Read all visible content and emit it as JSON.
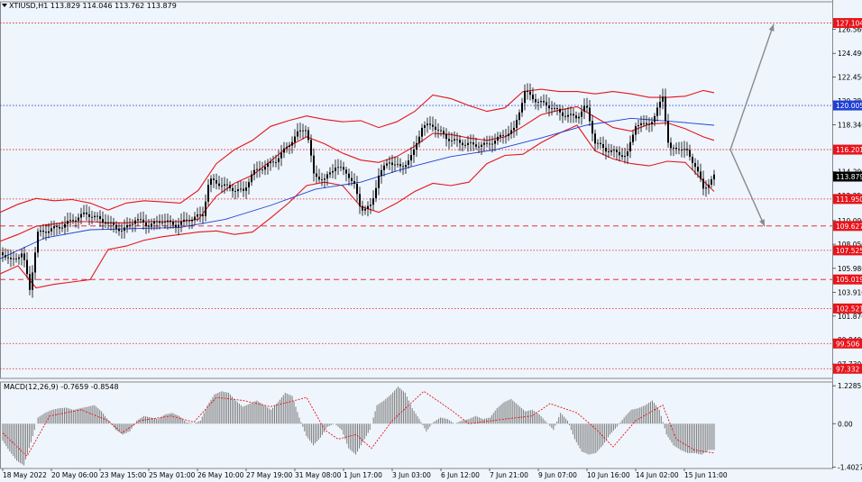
{
  "header": {
    "symbol_info": "XTIUSD,H1  113.829 114.046 113.762 113.879",
    "macd_label": "MACD(12,26,9) -0.7659 -0.8548"
  },
  "colors": {
    "background": "#eef5fc",
    "bollinger": "#e8141b",
    "moving_average": "#1f3fd6",
    "candles": "#000000",
    "macd_hist": "#7a7a7a",
    "macd_signal": "#e8141b",
    "arrows": "#8a8a8a",
    "red_badge": "#e8141b",
    "blue_badge": "#1f3fd6",
    "price_badge": "#000000"
  },
  "chart_data": {
    "type": "candlestick",
    "symbol": "XTIUSD",
    "timeframe": "H1",
    "last_price": 113.879,
    "ylim": [
      96.5,
      128.0
    ],
    "price_ticks": [
      "126.560",
      "124.490",
      "122.450",
      "120.380",
      "118.340",
      "114.290",
      "112.250",
      "110.090",
      "108.050",
      "105.980",
      "103.910",
      "101.870",
      "99.840",
      "97.730"
    ],
    "x_labels": [
      "18 May 2022",
      "20 May 06:00",
      "23 May 15:00",
      "25 May 01:00",
      "26 May 10:00",
      "27 May 19:00",
      "31 May 08:00",
      "1 Jun 17:00",
      "3 Jun 03:00",
      "6 Jun 12:00",
      "7 Jun 21:00",
      "9 Jun 07:00",
      "10 Jun 16:00",
      "14 Jun 02:00",
      "15 Jun 11:00"
    ],
    "horizontal_levels": [
      {
        "value": 127.104,
        "label": "127.104",
        "style": "dotted",
        "color": "#e8141b"
      },
      {
        "value": 120.005,
        "label": "120.005",
        "style": "dotted",
        "color": "#1f3fd6"
      },
      {
        "value": 116.201,
        "label": "116.201",
        "style": "dotted",
        "color": "#e8141b"
      },
      {
        "value": 111.95,
        "label": "111.950",
        "style": "dotted",
        "color": "#e8141b"
      },
      {
        "value": 109.627,
        "label": "109.627",
        "style": "dashed",
        "color": "#e8141b"
      },
      {
        "value": 107.525,
        "label": "107.525",
        "style": "dotted",
        "color": "#e8141b"
      },
      {
        "value": 105.019,
        "label": "105.019",
        "style": "dashed",
        "color": "#e8141b"
      },
      {
        "value": 102.521,
        "label": "102.521",
        "style": "dotted",
        "color": "#e8141b"
      },
      {
        "value": 99.506,
        "label": "99.506",
        "style": "dotted",
        "color": "#e8141b"
      },
      {
        "value": 97.332,
        "label": "97.332",
        "style": "dotted",
        "color": "#e8141b"
      }
    ],
    "price_path": [
      [
        0,
        107.5
      ],
      [
        12,
        106.6
      ],
      [
        25,
        107.3
      ],
      [
        33,
        104.2
      ],
      [
        42,
        109.0
      ],
      [
        55,
        109.3
      ],
      [
        68,
        109.6
      ],
      [
        82,
        110.2
      ],
      [
        95,
        110.7
      ],
      [
        108,
        110.3
      ],
      [
        122,
        109.8
      ],
      [
        136,
        109.2
      ],
      [
        150,
        110.2
      ],
      [
        165,
        109.7
      ],
      [
        180,
        110.1
      ],
      [
        195,
        109.7
      ],
      [
        210,
        110.2
      ],
      [
        225,
        110.6
      ],
      [
        232,
        113.6
      ],
      [
        245,
        113.2
      ],
      [
        258,
        112.8
      ],
      [
        270,
        112.6
      ],
      [
        280,
        114.2
      ],
      [
        292,
        114.7
      ],
      [
        305,
        115.2
      ],
      [
        318,
        116.4
      ],
      [
        330,
        117.6
      ],
      [
        340,
        118.1
      ],
      [
        348,
        114.0
      ],
      [
        360,
        113.6
      ],
      [
        372,
        114.8
      ],
      [
        385,
        114.2
      ],
      [
        393,
        113.1
      ],
      [
        400,
        111.1
      ],
      [
        412,
        111.3
      ],
      [
        420,
        114.1
      ],
      [
        432,
        115.2
      ],
      [
        445,
        114.6
      ],
      [
        458,
        115.8
      ],
      [
        468,
        118.2
      ],
      [
        480,
        118.3
      ],
      [
        495,
        117.2
      ],
      [
        510,
        116.8
      ],
      [
        525,
        116.6
      ],
      [
        540,
        116.6
      ],
      [
        555,
        117.3
      ],
      [
        570,
        117.9
      ],
      [
        582,
        121.2
      ],
      [
        595,
        120.4
      ],
      [
        610,
        119.9
      ],
      [
        625,
        119.2
      ],
      [
        640,
        119.0
      ],
      [
        650,
        120.0
      ],
      [
        660,
        116.8
      ],
      [
        672,
        116.2
      ],
      [
        685,
        115.9
      ],
      [
        695,
        115.6
      ],
      [
        705,
        118.4
      ],
      [
        715,
        118.3
      ],
      [
        725,
        118.8
      ],
      [
        735,
        120.9
      ],
      [
        742,
        116.1
      ],
      [
        752,
        116.4
      ],
      [
        762,
        116.0
      ],
      [
        772,
        114.7
      ],
      [
        780,
        112.8
      ],
      [
        792,
        113.879
      ]
    ],
    "bollinger_upper": [
      [
        0,
        110.8
      ],
      [
        20,
        111.5
      ],
      [
        40,
        112.0
      ],
      [
        60,
        111.8
      ],
      [
        80,
        111.9
      ],
      [
        100,
        111.6
      ],
      [
        120,
        111.0
      ],
      [
        140,
        111.6
      ],
      [
        160,
        111.8
      ],
      [
        180,
        111.7
      ],
      [
        200,
        111.6
      ],
      [
        220,
        112.7
      ],
      [
        240,
        115.0
      ],
      [
        260,
        116.2
      ],
      [
        280,
        117.0
      ],
      [
        300,
        118.2
      ],
      [
        320,
        118.7
      ],
      [
        340,
        119.1
      ],
      [
        360,
        118.8
      ],
      [
        380,
        118.6
      ],
      [
        400,
        118.7
      ],
      [
        420,
        118.1
      ],
      [
        440,
        118.6
      ],
      [
        460,
        119.5
      ],
      [
        480,
        120.9
      ],
      [
        500,
        120.6
      ],
      [
        520,
        120.0
      ],
      [
        540,
        119.5
      ],
      [
        560,
        119.8
      ],
      [
        580,
        121.2
      ],
      [
        600,
        121.4
      ],
      [
        620,
        121.2
      ],
      [
        640,
        121.2
      ],
      [
        660,
        121.0
      ],
      [
        680,
        121.2
      ],
      [
        700,
        121.0
      ],
      [
        720,
        120.7
      ],
      [
        740,
        120.7
      ],
      [
        760,
        120.8
      ],
      [
        780,
        121.3
      ],
      [
        792,
        121.1
      ]
    ],
    "bollinger_middle": [
      [
        0,
        108.3
      ],
      [
        20,
        108.9
      ],
      [
        40,
        109.6
      ],
      [
        60,
        109.8
      ],
      [
        80,
        110.0
      ],
      [
        100,
        110.0
      ],
      [
        120,
        109.9
      ],
      [
        140,
        109.9
      ],
      [
        160,
        110.0
      ],
      [
        180,
        110.0
      ],
      [
        200,
        110.0
      ],
      [
        220,
        110.2
      ],
      [
        240,
        112.2
      ],
      [
        260,
        113.3
      ],
      [
        280,
        114.0
      ],
      [
        300,
        115.2
      ],
      [
        320,
        116.5
      ],
      [
        340,
        117.3
      ],
      [
        360,
        116.7
      ],
      [
        380,
        115.9
      ],
      [
        400,
        115.3
      ],
      [
        420,
        115.1
      ],
      [
        440,
        115.6
      ],
      [
        460,
        116.5
      ],
      [
        480,
        117.6
      ],
      [
        500,
        117.5
      ],
      [
        520,
        117.2
      ],
      [
        540,
        117.0
      ],
      [
        560,
        117.3
      ],
      [
        580,
        118.2
      ],
      [
        600,
        119.2
      ],
      [
        620,
        119.6
      ],
      [
        640,
        119.9
      ],
      [
        660,
        119.0
      ],
      [
        680,
        118.1
      ],
      [
        700,
        117.8
      ],
      [
        720,
        118.4
      ],
      [
        740,
        118.5
      ],
      [
        760,
        118.0
      ],
      [
        780,
        117.3
      ],
      [
        792,
        117.0
      ]
    ],
    "bollinger_lower": [
      [
        0,
        105.5
      ],
      [
        20,
        106.2
      ],
      [
        40,
        104.3
      ],
      [
        60,
        104.6
      ],
      [
        80,
        104.8
      ],
      [
        100,
        105.0
      ],
      [
        120,
        107.6
      ],
      [
        140,
        107.9
      ],
      [
        160,
        108.4
      ],
      [
        180,
        108.7
      ],
      [
        200,
        108.9
      ],
      [
        220,
        109.1
      ],
      [
        240,
        109.2
      ],
      [
        260,
        108.9
      ],
      [
        280,
        109.1
      ],
      [
        300,
        110.3
      ],
      [
        320,
        111.6
      ],
      [
        340,
        113.1
      ],
      [
        360,
        113.4
      ],
      [
        380,
        113.1
      ],
      [
        400,
        111.3
      ],
      [
        420,
        110.8
      ],
      [
        440,
        111.6
      ],
      [
        460,
        112.6
      ],
      [
        480,
        113.3
      ],
      [
        500,
        113.1
      ],
      [
        520,
        113.4
      ],
      [
        540,
        115.0
      ],
      [
        560,
        115.7
      ],
      [
        580,
        115.8
      ],
      [
        600,
        116.8
      ],
      [
        620,
        117.6
      ],
      [
        640,
        118.3
      ],
      [
        660,
        116.1
      ],
      [
        680,
        115.4
      ],
      [
        700,
        115.0
      ],
      [
        720,
        114.8
      ],
      [
        740,
        115.2
      ],
      [
        760,
        115.1
      ],
      [
        780,
        113.5
      ],
      [
        792,
        112.6
      ]
    ],
    "moving_average": [
      [
        0,
        106.8
      ],
      [
        50,
        108.6
      ],
      [
        100,
        109.3
      ],
      [
        150,
        109.4
      ],
      [
        200,
        109.5
      ],
      [
        250,
        110.2
      ],
      [
        300,
        111.4
      ],
      [
        350,
        112.8
      ],
      [
        400,
        113.4
      ],
      [
        450,
        114.6
      ],
      [
        500,
        115.6
      ],
      [
        550,
        116.2
      ],
      [
        600,
        117.2
      ],
      [
        650,
        118.3
      ],
      [
        700,
        118.9
      ],
      [
        750,
        118.6
      ],
      [
        792,
        118.3
      ]
    ],
    "projection_arrows": [
      {
        "from": [
          810,
          116.2
        ],
        "to": [
          858,
          127.0
        ]
      },
      {
        "from": [
          810,
          116.2
        ],
        "to": [
          848,
          109.6
        ]
      }
    ],
    "macd": {
      "ylim": [
        -1.45,
        1.35
      ],
      "ticks": [
        "1.2285",
        "0.00",
        "-1.4027"
      ],
      "histogram_x_start": 3,
      "histogram_x_end": 792,
      "histogram": [
        -0.55,
        -0.9,
        -1.2,
        -1.35,
        -0.6,
        0.2,
        0.35,
        0.45,
        0.5,
        0.52,
        0.45,
        0.5,
        0.55,
        0.6,
        0.4,
        0.1,
        -0.2,
        -0.35,
        -0.25,
        0.1,
        0.25,
        0.2,
        0.15,
        0.3,
        0.35,
        0.25,
        0.05,
        0.0,
        0.1,
        0.6,
        0.95,
        1.05,
        1.0,
        0.75,
        0.55,
        0.65,
        0.75,
        0.6,
        0.45,
        0.7,
        1.0,
        0.9,
        0.2,
        -0.4,
        -0.7,
        -0.45,
        -0.1,
        0.0,
        -0.2,
        -0.8,
        -1.0,
        -0.6,
        -0.2,
        0.6,
        0.75,
        0.95,
        1.2,
        1.0,
        0.5,
        0.15,
        -0.25,
        0.05,
        0.2,
        0.15,
        0.0,
        0.1,
        0.15,
        0.25,
        0.15,
        0.2,
        0.5,
        0.7,
        0.8,
        0.6,
        0.4,
        0.45,
        0.3,
        0.05,
        -0.2,
        0.35,
        0.1,
        -0.5,
        -0.9,
        -1.0,
        -0.95,
        -0.7,
        -0.35,
        -0.1,
        0.2,
        0.45,
        0.5,
        0.6,
        0.75,
        0.45,
        -0.35,
        -0.7,
        -0.85,
        -0.95,
        -0.95,
        -1.0,
        -0.85
      ],
      "signal": [
        [
          3,
          -0.3
        ],
        [
          30,
          -1.05
        ],
        [
          55,
          0.25
        ],
        [
          90,
          0.45
        ],
        [
          120,
          0.1
        ],
        [
          135,
          -0.3
        ],
        [
          155,
          0.1
        ],
        [
          190,
          0.25
        ],
        [
          215,
          0.05
        ],
        [
          240,
          0.85
        ],
        [
          270,
          0.75
        ],
        [
          300,
          0.55
        ],
        [
          340,
          0.85
        ],
        [
          360,
          -0.2
        ],
        [
          375,
          -0.5
        ],
        [
          395,
          -0.35
        ],
        [
          412,
          -0.8
        ],
        [
          435,
          0.1
        ],
        [
          470,
          1.05
        ],
        [
          500,
          0.45
        ],
        [
          520,
          0.0
        ],
        [
          560,
          0.15
        ],
        [
          590,
          0.25
        ],
        [
          610,
          0.65
        ],
        [
          640,
          0.35
        ],
        [
          660,
          -0.15
        ],
        [
          680,
          -0.75
        ],
        [
          705,
          0.1
        ],
        [
          735,
          0.6
        ],
        [
          750,
          -0.5
        ],
        [
          770,
          -0.85
        ],
        [
          792,
          -0.95
        ]
      ]
    }
  }
}
